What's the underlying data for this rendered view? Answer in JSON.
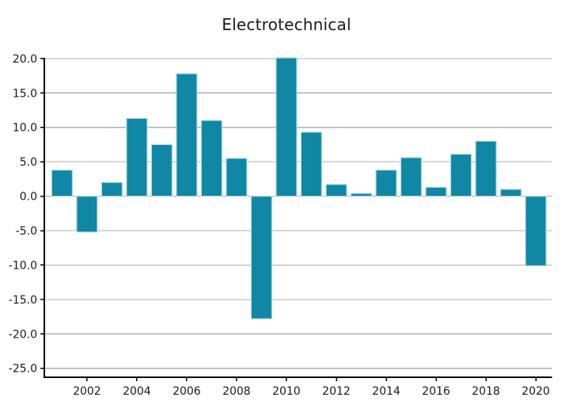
{
  "title": "Electrotechnical",
  "chart_data": {
    "type": "bar",
    "title": "Electrotechnical",
    "xlabel": "",
    "ylabel": "",
    "x": [
      2001,
      2002,
      2003,
      2004,
      2005,
      2006,
      2007,
      2008,
      2009,
      2010,
      2011,
      2012,
      2013,
      2014,
      2015,
      2016,
      2017,
      2018,
      2019,
      2020
    ],
    "values": [
      3.8,
      -5.2,
      2.0,
      11.3,
      7.5,
      17.8,
      11.0,
      5.5,
      -17.8,
      20.1,
      9.3,
      1.7,
      0.4,
      3.8,
      5.6,
      1.3,
      6.1,
      8.0,
      1.0,
      -10.1
    ],
    "series_name": "Electrotechnical",
    "xlim": [
      2000.29,
      2020.65
    ],
    "ylim": [
      -26.3,
      20.1
    ],
    "yticks": [
      20.0,
      15.0,
      10.0,
      5.0,
      0.0,
      -5.0,
      -10.0,
      -15.0,
      -20.0,
      -25.0
    ],
    "ytick_labels": [
      "20.0",
      "15.0",
      "10.0",
      "5.0",
      "0.0",
      "-5.0",
      "-10.0",
      "-15.0",
      "-20.0",
      "-25.0"
    ],
    "xticks": [
      2002,
      2004,
      2006,
      2008,
      2010,
      2012,
      2014,
      2016,
      2018,
      2020
    ],
    "xtick_labels": [
      "2002",
      "2004",
      "2006",
      "2008",
      "2010",
      "2012",
      "2014",
      "2016",
      "2018",
      "2020"
    ],
    "grid": true,
    "legend": false,
    "bar_color": "#0f87a5",
    "bar_edge_color": "#b0d8e6",
    "grid_color": "#b0b0b0",
    "axis_color": "#000000",
    "text_color": "#1a1a1a"
  }
}
